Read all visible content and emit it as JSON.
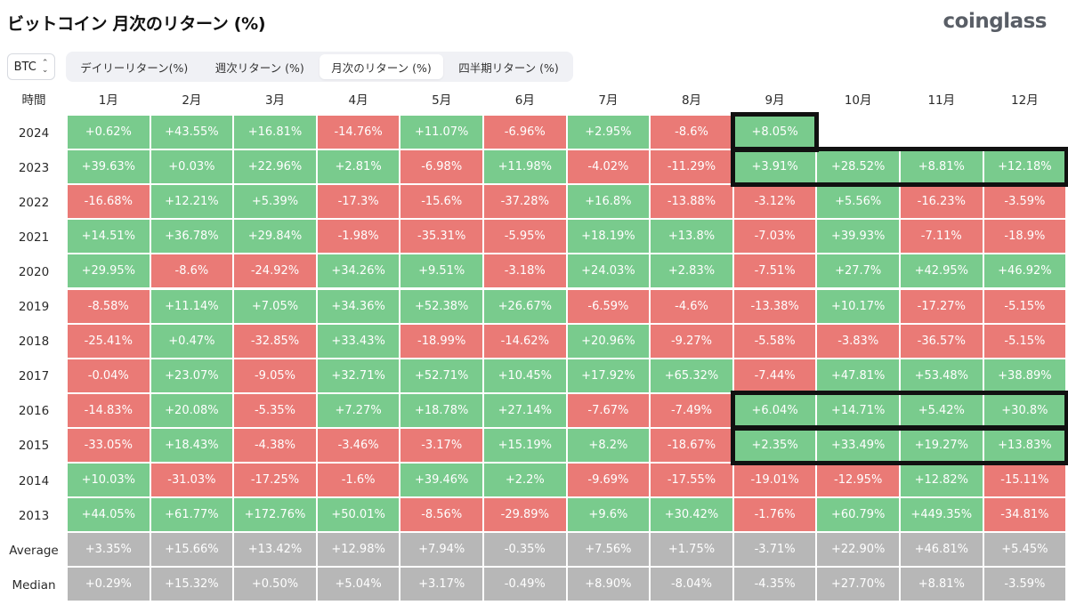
{
  "header": {
    "title": "ビットコイン 月次のリターン (%)",
    "logo": "coinglass"
  },
  "controls": {
    "symbol": "BTC",
    "tabs": [
      {
        "label": "デイリーリターン(%)",
        "active": false
      },
      {
        "label": "週次リターン (%)",
        "active": false
      },
      {
        "label": "月次のリターン (%)",
        "active": true
      },
      {
        "label": "四半期リターン (%)",
        "active": false
      }
    ]
  },
  "table": {
    "corner_label": "時間",
    "columns": [
      "1月",
      "2月",
      "3月",
      "4月",
      "5月",
      "6月",
      "7月",
      "8月",
      "9月",
      "10月",
      "11月",
      "12月"
    ],
    "rows": [
      {
        "label": "2024",
        "values": [
          "+0.62%",
          "+43.55%",
          "+16.81%",
          "-14.76%",
          "+11.07%",
          "-6.96%",
          "+2.95%",
          "-8.6%",
          "+8.05%",
          "",
          "",
          ""
        ]
      },
      {
        "label": "2023",
        "values": [
          "+39.63%",
          "+0.03%",
          "+22.96%",
          "+2.81%",
          "-6.98%",
          "+11.98%",
          "-4.02%",
          "-11.29%",
          "+3.91%",
          "+28.52%",
          "+8.81%",
          "+12.18%"
        ]
      },
      {
        "label": "2022",
        "values": [
          "-16.68%",
          "+12.21%",
          "+5.39%",
          "-17.3%",
          "-15.6%",
          "-37.28%",
          "+16.8%",
          "-13.88%",
          "-3.12%",
          "+5.56%",
          "-16.23%",
          "-3.59%"
        ]
      },
      {
        "label": "2021",
        "values": [
          "+14.51%",
          "+36.78%",
          "+29.84%",
          "-1.98%",
          "-35.31%",
          "-5.95%",
          "+18.19%",
          "+13.8%",
          "-7.03%",
          "+39.93%",
          "-7.11%",
          "-18.9%"
        ]
      },
      {
        "label": "2020",
        "values": [
          "+29.95%",
          "-8.6%",
          "-24.92%",
          "+34.26%",
          "+9.51%",
          "-3.18%",
          "+24.03%",
          "+2.83%",
          "-7.51%",
          "+27.7%",
          "+42.95%",
          "+46.92%"
        ]
      },
      {
        "label": "2019",
        "values": [
          "-8.58%",
          "+11.14%",
          "+7.05%",
          "+34.36%",
          "+52.38%",
          "+26.67%",
          "-6.59%",
          "-4.6%",
          "-13.38%",
          "+10.17%",
          "-17.27%",
          "-5.15%"
        ]
      },
      {
        "label": "2018",
        "values": [
          "-25.41%",
          "+0.47%",
          "-32.85%",
          "+33.43%",
          "-18.99%",
          "-14.62%",
          "+20.96%",
          "-9.27%",
          "-5.58%",
          "-3.83%",
          "-36.57%",
          "-5.15%"
        ]
      },
      {
        "label": "2017",
        "values": [
          "-0.04%",
          "+23.07%",
          "-9.05%",
          "+32.71%",
          "+52.71%",
          "+10.45%",
          "+17.92%",
          "+65.32%",
          "-7.44%",
          "+47.81%",
          "+53.48%",
          "+38.89%"
        ]
      },
      {
        "label": "2016",
        "values": [
          "-14.83%",
          "+20.08%",
          "-5.35%",
          "+7.27%",
          "+18.78%",
          "+27.14%",
          "-7.67%",
          "-7.49%",
          "+6.04%",
          "+14.71%",
          "+5.42%",
          "+30.8%"
        ]
      },
      {
        "label": "2015",
        "values": [
          "-33.05%",
          "+18.43%",
          "-4.38%",
          "-3.46%",
          "-3.17%",
          "+15.19%",
          "+8.2%",
          "-18.67%",
          "+2.35%",
          "+33.49%",
          "+19.27%",
          "+13.83%"
        ]
      },
      {
        "label": "2014",
        "values": [
          "+10.03%",
          "-31.03%",
          "-17.25%",
          "-1.6%",
          "+39.46%",
          "+2.2%",
          "-9.69%",
          "-17.55%",
          "-19.01%",
          "-12.95%",
          "+12.82%",
          "-15.11%"
        ]
      },
      {
        "label": "2013",
        "values": [
          "+44.05%",
          "+61.77%",
          "+172.76%",
          "+50.01%",
          "-8.56%",
          "-29.89%",
          "+9.6%",
          "+30.42%",
          "-1.76%",
          "+60.79%",
          "+449.35%",
          "-34.81%"
        ]
      },
      {
        "label": "Average",
        "summary": true,
        "values": [
          "+3.35%",
          "+15.66%",
          "+13.42%",
          "+12.98%",
          "+7.94%",
          "-0.35%",
          "+7.56%",
          "+1.75%",
          "-3.71%",
          "+22.90%",
          "+46.81%",
          "+5.45%"
        ]
      },
      {
        "label": "Median",
        "summary": true,
        "values": [
          "+0.29%",
          "+15.32%",
          "+0.50%",
          "+5.04%",
          "+3.17%",
          "-0.49%",
          "+8.90%",
          "-8.04%",
          "-4.35%",
          "+27.70%",
          "+8.81%",
          "-3.59%"
        ]
      }
    ],
    "highlights": [
      {
        "row": 0,
        "col_start": 8,
        "col_end": 8
      },
      {
        "row": 1,
        "col_start": 8,
        "col_end": 11
      },
      {
        "row": 8,
        "col_start": 8,
        "col_end": 11
      },
      {
        "row": 9,
        "col_start": 8,
        "col_end": 11
      }
    ]
  },
  "colors": {
    "positive": "#79cb8d",
    "negative": "#ea7a76",
    "summary": "#b7b7b7",
    "highlight_border": "#111111"
  }
}
